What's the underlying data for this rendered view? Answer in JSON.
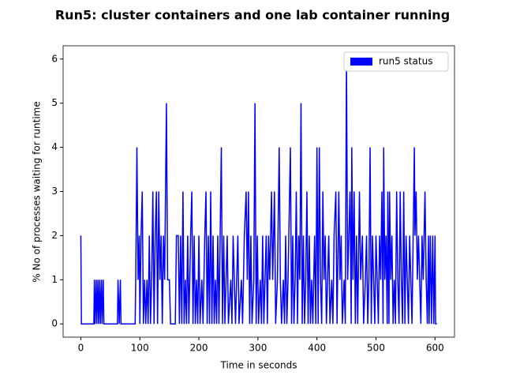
{
  "chart_data": {
    "type": "line",
    "title": "Run5: cluster containers and one lab container running",
    "xlabel": "Time  in seconds",
    "ylabel": "% No of processes waiting for runtime",
    "xlim": [
      -30,
      633
    ],
    "ylim": [
      -0.3,
      6.3
    ],
    "xticks": [
      0,
      100,
      200,
      300,
      400,
      500,
      600
    ],
    "yticks": [
      0,
      1,
      2,
      3,
      4,
      5,
      6
    ],
    "legend": "upper right",
    "x": [
      0,
      1,
      22,
      23,
      24,
      26,
      27,
      29,
      30,
      32,
      33,
      35,
      36,
      38,
      39,
      62,
      63,
      65,
      67,
      68,
      92,
      93,
      95,
      97,
      99,
      100,
      102,
      104,
      106,
      108,
      110,
      112,
      114,
      116,
      118,
      120,
      122,
      124,
      126,
      128,
      130,
      132,
      134,
      136,
      138,
      140,
      142,
      145,
      147,
      150,
      152,
      160,
      162,
      165,
      167,
      169,
      171,
      173,
      175,
      177,
      179,
      181,
      183,
      186,
      188,
      190,
      192,
      194,
      196,
      198,
      200,
      202,
      205,
      207,
      210,
      212,
      214,
      216,
      218,
      220,
      222,
      224,
      226,
      228,
      230,
      232,
      234,
      236,
      238,
      240,
      242,
      244,
      246,
      248,
      250,
      254,
      256,
      258,
      260,
      262,
      266,
      268,
      272,
      274,
      277,
      280,
      282,
      284,
      286,
      288,
      290,
      293,
      295,
      297,
      299,
      301,
      304,
      306,
      308,
      310,
      312,
      314,
      316,
      318,
      320,
      323,
      325,
      328,
      330,
      333,
      336,
      338,
      340,
      343,
      345,
      347,
      349,
      351,
      355,
      357,
      359,
      361,
      363,
      365,
      367,
      369,
      371,
      373,
      375,
      377,
      379,
      381,
      383,
      385,
      387,
      389,
      391,
      393,
      396,
      398,
      400,
      402,
      404,
      406,
      408,
      410,
      412,
      414,
      416,
      418,
      420,
      422,
      425,
      427,
      429,
      432,
      434,
      437,
      439,
      441,
      443,
      446,
      448,
      450,
      452,
      454,
      456,
      458,
      459,
      461,
      463,
      465,
      467,
      469,
      472,
      474,
      477,
      479,
      482,
      484,
      486,
      488,
      490,
      492,
      494,
      496,
      498,
      500,
      502,
      504,
      506,
      508,
      510,
      512,
      513,
      515,
      517,
      519,
      520,
      522,
      523,
      525,
      527,
      529,
      531,
      533,
      535,
      537,
      539,
      541,
      543,
      545,
      547,
      549,
      551,
      553,
      555,
      557,
      559,
      561,
      563,
      565,
      566,
      568,
      570,
      572,
      574,
      576,
      578,
      580,
      583,
      585,
      587,
      589,
      590,
      592,
      594,
      596,
      598,
      600,
      601,
      603
    ],
    "series": [
      {
        "name": "run5 status",
        "color": "#0000ff",
        "values": [
          2,
          0,
          0,
          1,
          0,
          1,
          0,
          1,
          0,
          1,
          0,
          1,
          0,
          1,
          0,
          0,
          1,
          0,
          1,
          0,
          0,
          1,
          4,
          1,
          2,
          0,
          2,
          3,
          0,
          1,
          0,
          1,
          0,
          2,
          0,
          1,
          3,
          0,
          2,
          3,
          0,
          3,
          1,
          2,
          0,
          2,
          1,
          5,
          1,
          1,
          0,
          0,
          2,
          2,
          0,
          2,
          0,
          3,
          0,
          1,
          0,
          2,
          0,
          2,
          3,
          0,
          2,
          0,
          1,
          0,
          2,
          0,
          1,
          0,
          2,
          3,
          0,
          2,
          0,
          3,
          0,
          2,
          0,
          1,
          0,
          2,
          0,
          2,
          4,
          0,
          2,
          0,
          1,
          2,
          0,
          1,
          0,
          2,
          1,
          0,
          2,
          0,
          1,
          0,
          2,
          3,
          1,
          3,
          0,
          2,
          0,
          1,
          5,
          0,
          2,
          0,
          1,
          0,
          2,
          0,
          1,
          2,
          0,
          2,
          1,
          3,
          1,
          3,
          0,
          1,
          4,
          1,
          0,
          1,
          0,
          2,
          0,
          1,
          4,
          0,
          2,
          0,
          1,
          3,
          0,
          2,
          1,
          5,
          0,
          2,
          0,
          1,
          3,
          0,
          2,
          0,
          1,
          0,
          2,
          0,
          4,
          0,
          4,
          1,
          0,
          3,
          1,
          2,
          0,
          1,
          2,
          0,
          1,
          0,
          2,
          3,
          0,
          3,
          1,
          2,
          0,
          1,
          0,
          6,
          1,
          2,
          3,
          0,
          4,
          1,
          3,
          0,
          2,
          0,
          3,
          1,
          2,
          0,
          1,
          2,
          0,
          1,
          4,
          0,
          2,
          1,
          0,
          2,
          1,
          0,
          2,
          1,
          3,
          0,
          4,
          1,
          2,
          0,
          3,
          0,
          3,
          1,
          2,
          0,
          1,
          0,
          3,
          1,
          0,
          3,
          1,
          0,
          3,
          0,
          2,
          1,
          0,
          2,
          1,
          0,
          2,
          4,
          2,
          3,
          1,
          2,
          1,
          0,
          2,
          1,
          3,
          1,
          0,
          2,
          0,
          2,
          0,
          2,
          0,
          2,
          0,
          0
        ]
      }
    ]
  }
}
